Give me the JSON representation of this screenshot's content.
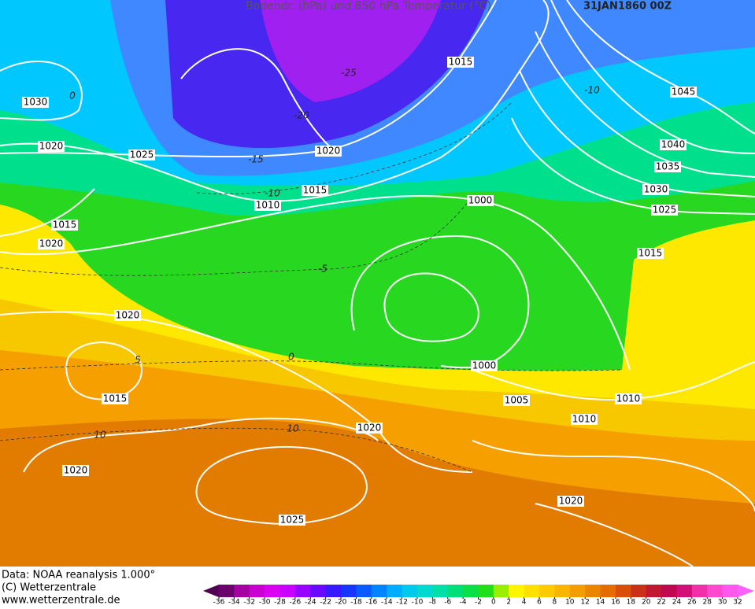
{
  "header": {
    "title": "Bodendr. (hPa)  und 850 hPa Temperatur (°C)",
    "date": "31JAN1860 00Z"
  },
  "isobar_labels": [
    "1015",
    "1030",
    "1045",
    "1020",
    "1020",
    "1025",
    "1040",
    "1035",
    "1015",
    "1030",
    "1010",
    "1000",
    "1025",
    "1015",
    "1020",
    "1015",
    "1020",
    "1000",
    "1015",
    "1005",
    "1010",
    "1010",
    "1020",
    "1020",
    "1020",
    "1025"
  ],
  "temperature_labels": [
    "0",
    "-25",
    "-20",
    "-15",
    "-10",
    "-10",
    "-5",
    "5",
    "0",
    "10",
    "10"
  ],
  "footer": {
    "source": "Data: NOAA reanalysis 1.000°",
    "copyright": "(C) Wetterzentrale",
    "url": "www.wetterzentrale.de"
  },
  "colorbar": {
    "ticks": [
      -36,
      -34,
      -32,
      -30,
      -28,
      -26,
      -24,
      -22,
      -20,
      -18,
      -16,
      -14,
      -12,
      -10,
      -8,
      -6,
      -4,
      -2,
      0,
      2,
      4,
      6,
      8,
      10,
      12,
      14,
      16,
      18,
      20,
      22,
      24,
      26,
      28,
      30,
      32
    ]
  }
}
